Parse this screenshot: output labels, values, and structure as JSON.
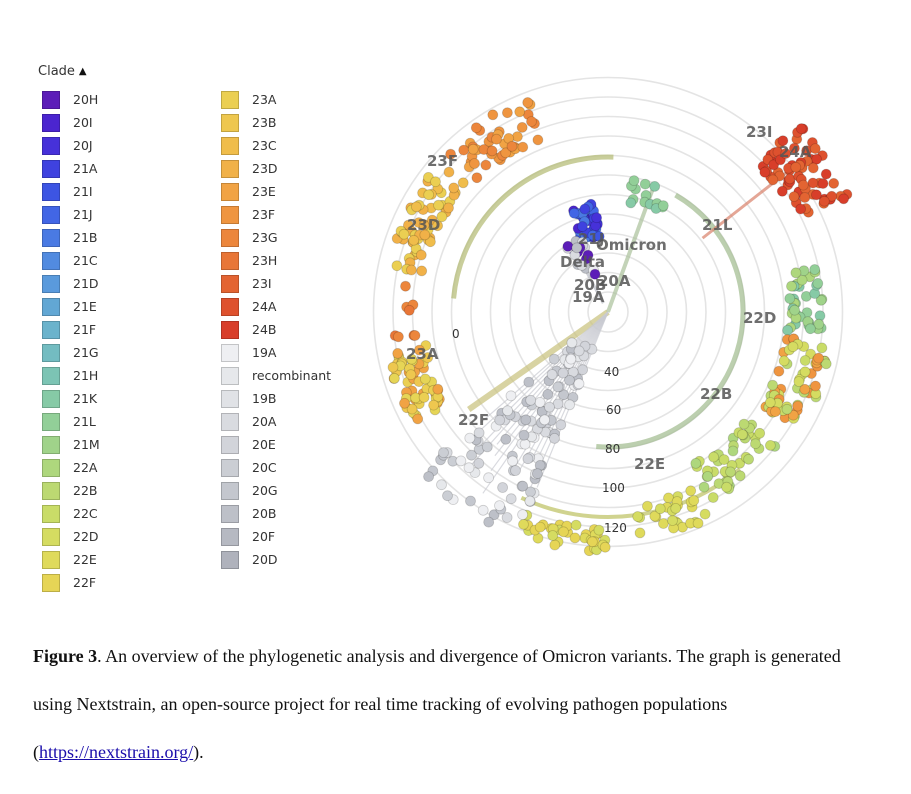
{
  "legend": {
    "title": "Clade",
    "col1": [
      {
        "label": "20H",
        "color": "#5c1db8"
      },
      {
        "label": "20I",
        "color": "#4b25cf"
      },
      {
        "label": "20J",
        "color": "#4631d9"
      },
      {
        "label": "21A",
        "color": "#3f42df"
      },
      {
        "label": "21I",
        "color": "#3d55e3"
      },
      {
        "label": "21J",
        "color": "#4266e5"
      },
      {
        "label": "21B",
        "color": "#4a7ae3"
      },
      {
        "label": "21C",
        "color": "#528be0"
      },
      {
        "label": "21D",
        "color": "#5a9adc"
      },
      {
        "label": "21E",
        "color": "#62a7d4"
      },
      {
        "label": "21F",
        "color": "#6bb3cc"
      },
      {
        "label": "21G",
        "color": "#73bcc1"
      },
      {
        "label": "21H",
        "color": "#7cc4b4"
      },
      {
        "label": "21K",
        "color": "#86caa6"
      },
      {
        "label": "21L",
        "color": "#92cf98"
      },
      {
        "label": "21M",
        "color": "#a0d38a"
      },
      {
        "label": "22A",
        "color": "#aed77d"
      },
      {
        "label": "22B",
        "color": "#bcd972"
      },
      {
        "label": "22C",
        "color": "#c9dc68"
      },
      {
        "label": "22D",
        "color": "#d5dc61"
      },
      {
        "label": "22E",
        "color": "#dfda5b"
      },
      {
        "label": "22F",
        "color": "#e6d556"
      }
    ],
    "col2": [
      {
        "label": "23A",
        "color": "#ebcf52"
      },
      {
        "label": "23B",
        "color": "#eec74f"
      },
      {
        "label": "23C",
        "color": "#f0bd4b"
      },
      {
        "label": "23D",
        "color": "#f1b148"
      },
      {
        "label": "23E",
        "color": "#f1a344"
      },
      {
        "label": "23F",
        "color": "#ef9540"
      },
      {
        "label": "23G",
        "color": "#ec863c"
      },
      {
        "label": "23H",
        "color": "#e87637"
      },
      {
        "label": "23I",
        "color": "#e36432"
      },
      {
        "label": "24A",
        "color": "#de512e"
      },
      {
        "label": "24B",
        "color": "#d83e2a"
      },
      {
        "label": "19A",
        "color": "#eeeff2"
      },
      {
        "label": "recombinant",
        "color": "#e6e8eb"
      },
      {
        "label": "19B",
        "color": "#e0e2e6"
      },
      {
        "label": "20A",
        "color": "#d9dbe0"
      },
      {
        "label": "20E",
        "color": "#d2d4da"
      },
      {
        "label": "20C",
        "color": "#cbced4"
      },
      {
        "label": "20G",
        "color": "#c4c7ce"
      },
      {
        "label": "20B",
        "color": "#bdc0c8"
      },
      {
        "label": "20F",
        "color": "#b6b9c2"
      },
      {
        "label": "20D",
        "color": "#afb2bc"
      }
    ]
  },
  "tree": {
    "ring_labels": [
      "0",
      "40",
      "60",
      "80",
      "100",
      "120"
    ],
    "clade_labels": [
      "23I",
      "24A",
      "23F",
      "23D",
      "21L",
      "22D",
      "23A",
      "22B",
      "22F",
      "22E",
      "Omicron",
      "Delta",
      "20B",
      "19A",
      "21J",
      "20A"
    ]
  },
  "caption": {
    "figure_label": "Figure 3",
    "text": ". An overview of the phylogenetic analysis  and divergence of  Omicron variants. The graph is  generated using  Nextstrain, an open-source project for real time tracking of evolving pathogen populations  (",
    "link": "https://nextstrain.org/",
    "end": ")."
  }
}
